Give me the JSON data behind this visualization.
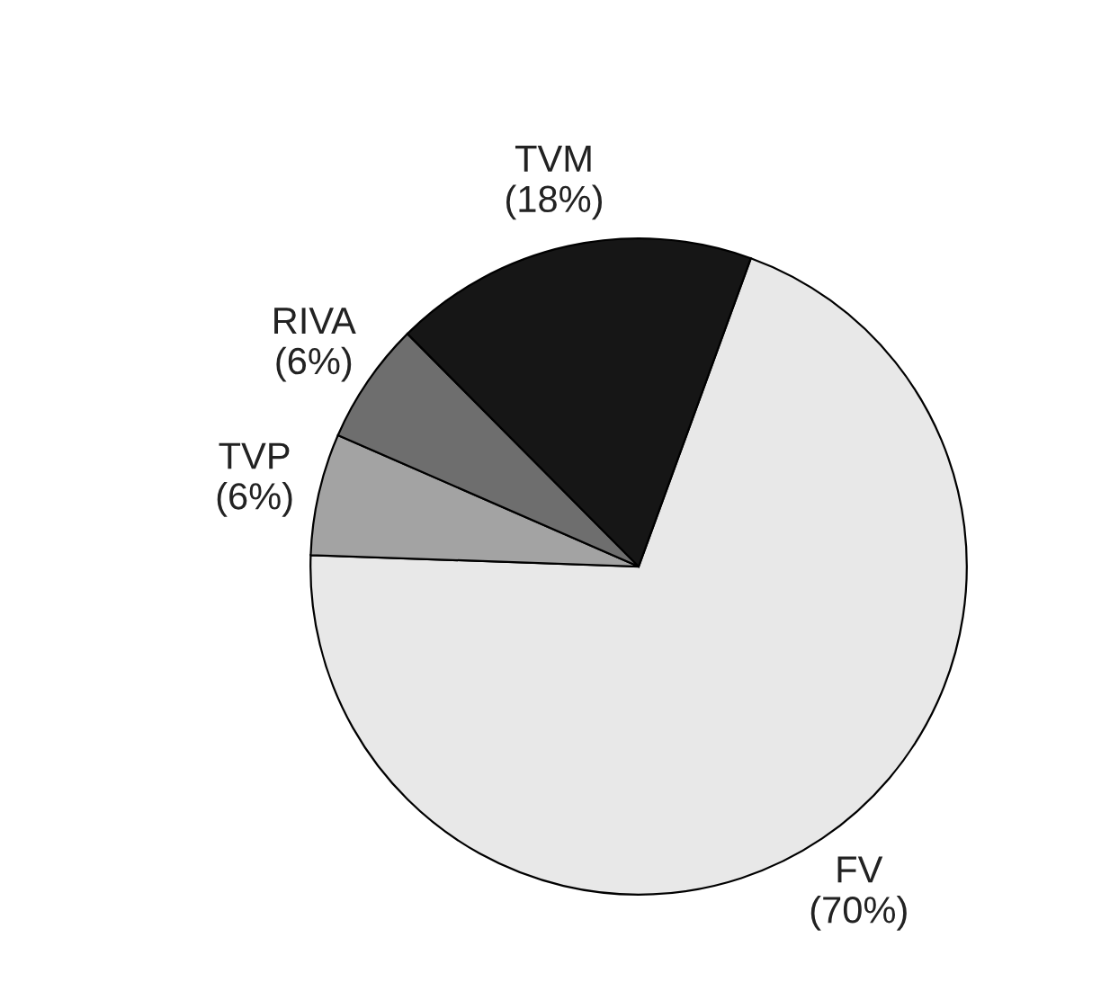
{
  "chart_data": {
    "type": "pie",
    "categories": [
      "FV",
      "TVP",
      "RIVA",
      "TVM"
    ],
    "values": [
      70,
      6,
      6,
      18
    ],
    "value_labels": [
      "(70%)",
      "(6%)",
      "(6%)",
      "(18%)"
    ],
    "colors": [
      "#e8e8e8",
      "#a3a3a3",
      "#6e6e6e",
      "#161616"
    ]
  }
}
